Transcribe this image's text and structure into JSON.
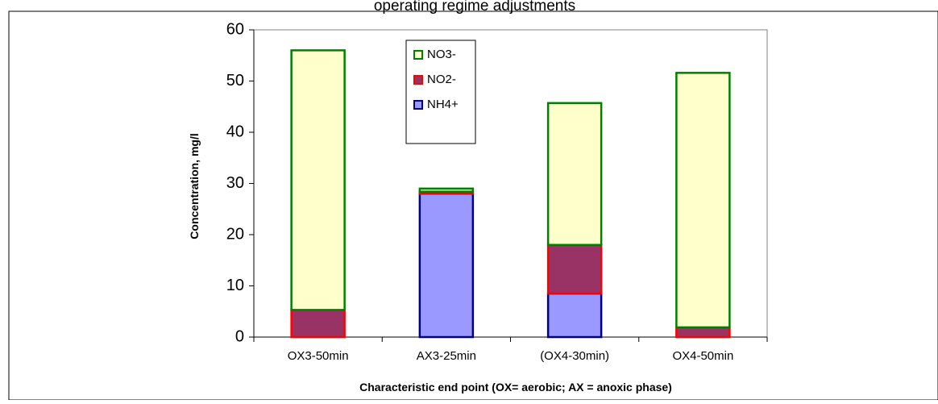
{
  "chart_data": {
    "type": "bar",
    "stacked": true,
    "title": "operating regime adjustments",
    "xlabel": "Characteristic end point (OX= aerobic; AX = anoxic phase)",
    "ylabel": "Concentration, mg/l",
    "ylim": [
      0,
      60
    ],
    "yticks": [
      0,
      10,
      20,
      30,
      40,
      50,
      60
    ],
    "categories": [
      "OX3-50min",
      "AX3-25min",
      "(OX4-30min)",
      "OX4-50min"
    ],
    "series": [
      {
        "name": "NH4+",
        "values": [
          0,
          28,
          8.5,
          0
        ],
        "fill": "#9999ff",
        "stroke": "#000080"
      },
      {
        "name": "NO2-",
        "values": [
          5.3,
          0.4,
          9.5,
          1.9
        ],
        "fill": "#993366",
        "stroke": "#ff0000"
      },
      {
        "name": "NO3-",
        "values": [
          50.7,
          0.6,
          27.7,
          49.7
        ],
        "fill": "#ffffcc",
        "stroke": "#008000"
      }
    ],
    "legend": {
      "position": "top-center",
      "order": [
        "NO3-",
        "NO2-",
        "NH4+"
      ]
    },
    "grid": false
  }
}
